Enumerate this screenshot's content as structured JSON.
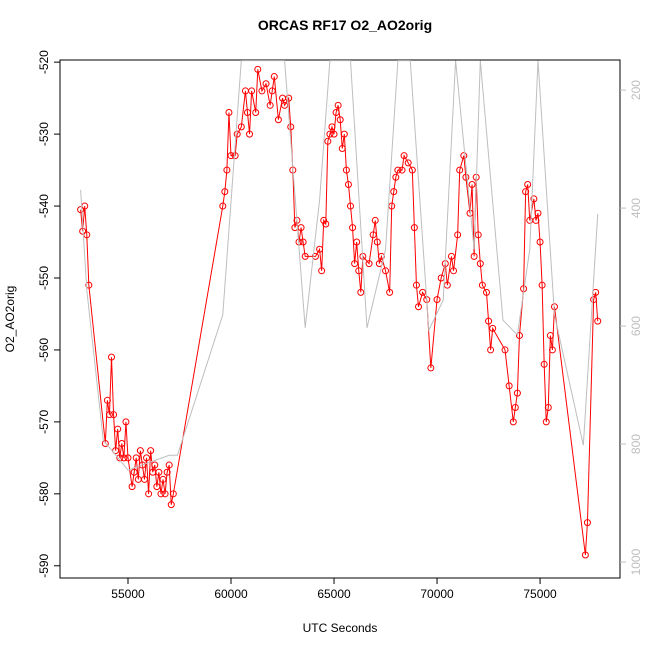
{
  "chart_data": {
    "type": "line",
    "title": "ORCAS RF17 O2_AO2orig",
    "x_label": "UTC Seconds",
    "y_label": "O2_AO2orig",
    "xlim": [
      51700,
      78880
    ],
    "xticks": [
      55000,
      60000,
      65000,
      70000,
      75000
    ],
    "ylim": [
      -591.7,
      -519.7
    ],
    "yticks": [
      -590,
      -580,
      -570,
      -560,
      -550,
      -540,
      -530,
      -520
    ],
    "y2lim": [
      1027,
      149
    ],
    "y2ticks": [
      200,
      400,
      600,
      800,
      1000
    ],
    "series": [
      {
        "color": "#ff0000",
        "x": [
          52700,
          52800,
          52900,
          53000,
          53100,
          53900,
          54000,
          54100,
          54200,
          54300,
          54400,
          54500,
          54600,
          54700,
          54800,
          54900,
          55000,
          55200,
          55300,
          55400,
          55500,
          55600,
          55700,
          55800,
          55900,
          56000,
          56100,
          56200,
          56300,
          56400,
          56500,
          56600,
          56700,
          56800,
          56900,
          57000,
          57100,
          57200,
          59600,
          59700,
          59800,
          59900,
          60000,
          60200,
          60300,
          60500,
          60700,
          60800,
          60900,
          61000,
          61200,
          61300,
          61500,
          61700,
          61900,
          62000,
          62100,
          62300,
          62500,
          62600,
          62800,
          62900,
          63000,
          63100,
          63200,
          63300,
          63400,
          63500,
          63600,
          64100,
          64300,
          64400,
          64500,
          64600,
          64700,
          64800,
          64900,
          65000,
          65100,
          65200,
          65300,
          65400,
          65500,
          65600,
          65700,
          65800,
          65900,
          66000,
          66100,
          66200,
          66300,
          66400,
          66700,
          66900,
          67000,
          67100,
          67200,
          67300,
          67500,
          67700,
          67800,
          67900,
          68000,
          68100,
          68300,
          68400,
          68600,
          68800,
          68900,
          69000,
          69100,
          69300,
          69500,
          69700,
          70000,
          70200,
          70400,
          70500,
          70700,
          70800,
          71000,
          71100,
          71300,
          71400,
          71600,
          71700,
          71800,
          71900,
          72000,
          72100,
          72200,
          72400,
          72500,
          72600,
          72700,
          73300,
          73500,
          73700,
          73800,
          73900,
          74000,
          74200,
          74300,
          74400,
          74500,
          74700,
          74800,
          74900,
          75000,
          75100,
          75200,
          75300,
          75400,
          75500,
          75600,
          75700,
          77200,
          77300,
          77600,
          77700,
          77800
        ],
        "values": [
          -540.5,
          -543.5,
          -540,
          -544,
          -551,
          -573,
          -567,
          -569,
          -561,
          -569,
          -574,
          -571,
          -575,
          -573,
          -575,
          -570,
          -575,
          -579,
          -577,
          -575,
          -578,
          -574,
          -576,
          -578,
          -575,
          -580,
          -574,
          -577,
          -576,
          -579,
          -577,
          -580,
          -578,
          -580,
          -577,
          -576,
          -581.5,
          -580,
          -540,
          -538,
          -535,
          -527,
          -533,
          -533,
          -530,
          -529,
          -524,
          -527,
          -530,
          -524,
          -527,
          -521,
          -524,
          -523,
          -526,
          -524,
          -522,
          -528,
          -525,
          -526,
          -525,
          -529,
          -535,
          -543,
          -542,
          -545,
          -543,
          -545,
          -547,
          -547,
          -546,
          -549,
          -542,
          -542.5,
          -531,
          -530,
          -529,
          -530,
          -527,
          -526,
          -528,
          -532,
          -530,
          -535,
          -537,
          -540,
          -543,
          -548,
          -545,
          -549,
          -552,
          -547,
          -548,
          -544,
          -542,
          -545,
          -548,
          -547,
          -549,
          -552,
          -540,
          -538,
          -536,
          -535,
          -535,
          -533,
          -534,
          -535,
          -543,
          -551,
          -554,
          -552,
          -553,
          -562.5,
          -553,
          -550,
          -548,
          -551,
          -547,
          -549,
          -544,
          -535,
          -533,
          -536,
          -541,
          -537,
          -547,
          -536,
          -544,
          -548,
          -551,
          -552,
          -556,
          -560,
          -557,
          -560,
          -565,
          -570,
          -568,
          -566,
          -558,
          -551.5,
          -538,
          -537,
          -542,
          -539,
          -542,
          -541,
          -545,
          -551,
          -562,
          -570,
          -568,
          -558,
          -560,
          -554,
          -588.5,
          -584,
          -553,
          -552,
          -556
        ]
      },
      {
        "color": "#bebebe",
        "axis": "y2",
        "x": [
          52700,
          53000,
          53800,
          55000,
          57000,
          57400,
          59600,
          60500,
          62600,
          63600,
          64300,
          64800,
          65800,
          66600,
          67500,
          68100,
          68700,
          69600,
          70300,
          70900,
          71800,
          72100,
          73200,
          73900,
          74500,
          74900,
          75700,
          77100,
          77800
        ],
        "values": [
          369,
          539,
          793,
          844,
          819,
          819,
          581,
          150,
          150,
          603,
          386,
          150,
          150,
          603,
          470,
          150,
          150,
          607,
          556,
          150,
          470,
          150,
          590,
          615,
          470,
          150,
          581,
          802,
          410
        ]
      }
    ]
  }
}
